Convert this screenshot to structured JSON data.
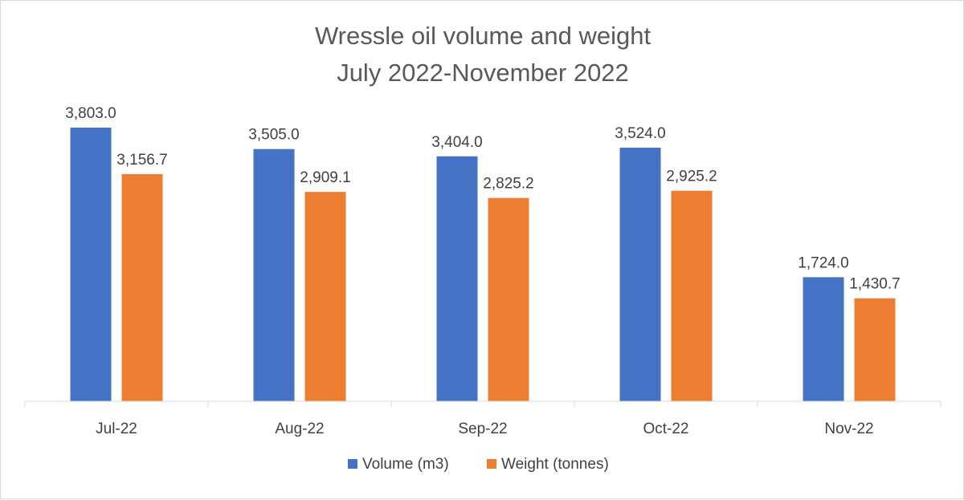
{
  "chart_data": {
    "type": "bar",
    "title_lines": [
      "Wressle oil volume and weight",
      "July 2022-November 2022"
    ],
    "categories": [
      "Jul-22",
      "Aug-22",
      "Sep-22",
      "Oct-22",
      "Nov-22"
    ],
    "series": [
      {
        "name": "Volume (m3)",
        "color": "#4472C4",
        "values": [
          3803.0,
          3505.0,
          3404.0,
          3524.0,
          1724.0
        ],
        "labels": [
          "3,803.0",
          "3,505.0",
          "3,404.0",
          "3,524.0",
          "1,724.0"
        ]
      },
      {
        "name": "Weight (tonnes)",
        "color": "#ED7D31",
        "values": [
          3156.7,
          2909.1,
          2825.2,
          2925.2,
          1430.7
        ],
        "labels": [
          "3,156.7",
          "2,909.1",
          "2,825.2",
          "2,925.2",
          "1,430.7"
        ]
      }
    ],
    "ylim": [
      0,
      3803.0
    ],
    "grid": false,
    "legend_position": "bottom",
    "xlabel": "",
    "ylabel": ""
  }
}
